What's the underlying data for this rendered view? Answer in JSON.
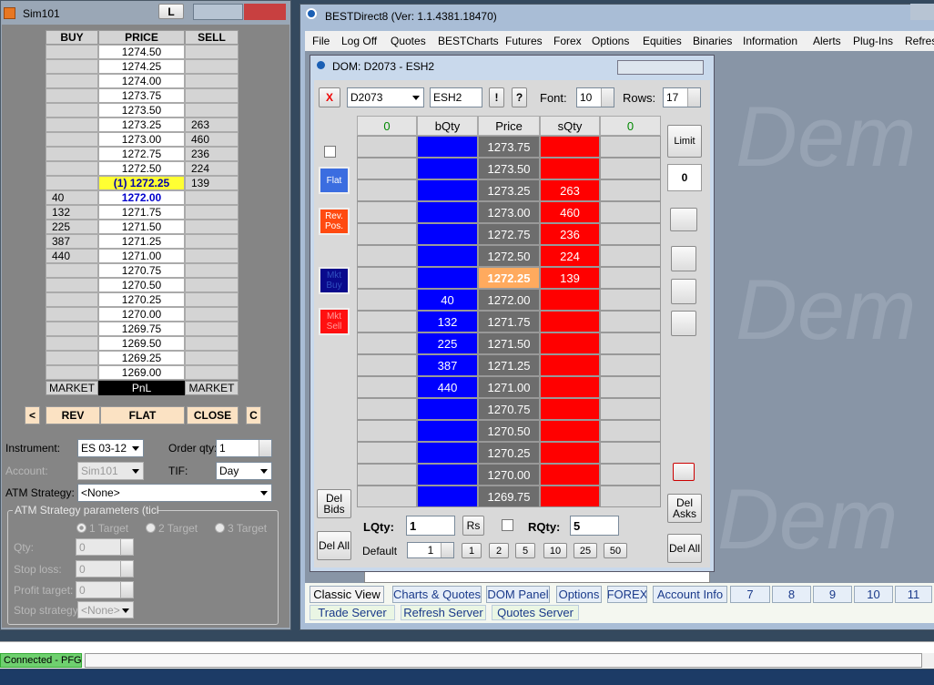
{
  "sim_window": {
    "title": "Sim101",
    "lock_button": "L",
    "ladder": {
      "headers": [
        "BUY",
        "PRICE",
        "SELL"
      ],
      "rows": [
        {
          "price": "1274.50"
        },
        {
          "price": "1274.25"
        },
        {
          "price": "1274.00"
        },
        {
          "price": "1273.75"
        },
        {
          "price": "1273.50"
        },
        {
          "price": "1273.25",
          "sell": "263"
        },
        {
          "price": "1273.00",
          "sell": "460"
        },
        {
          "price": "1272.75",
          "sell": "236"
        },
        {
          "price": "1272.50",
          "sell": "224"
        },
        {
          "price": "(1) 1272.25",
          "sell": "139"
        },
        {
          "buy": "40",
          "price": "1272.00"
        },
        {
          "buy": "132",
          "price": "1271.75"
        },
        {
          "buy": "225",
          "price": "1271.50"
        },
        {
          "buy": "387",
          "price": "1271.25"
        },
        {
          "buy": "440",
          "price": "1271.00"
        },
        {
          "price": "1270.75"
        },
        {
          "price": "1270.50"
        },
        {
          "price": "1270.25"
        },
        {
          "price": "1270.00"
        },
        {
          "price": "1269.75"
        },
        {
          "price": "1269.50"
        },
        {
          "price": "1269.25"
        },
        {
          "price": "1269.00"
        }
      ],
      "footer": [
        "MARKET",
        "PnL",
        "MARKET"
      ]
    },
    "buttons": [
      "<",
      "REV",
      "FLAT",
      "CLOSE",
      "C"
    ],
    "form": {
      "instrument_label": "Instrument:",
      "instrument": "ES 03-12",
      "order_qty_label": "Order qty:",
      "order_qty": "1",
      "account_label": "Account:",
      "account": "Sim101",
      "tif_label": "TIF:",
      "tif": "Day",
      "atm_label": "ATM Strategy:",
      "atm": "<None>",
      "group_title": "ATM Strategy parameters (ticks)",
      "targets": [
        "1 Target",
        "2 Target",
        "3 Target"
      ],
      "qty_label": "Qty:",
      "qty": "0",
      "stop_loss_label": "Stop loss:",
      "stop_loss": "0",
      "profit_target_label": "Profit target:",
      "profit_target": "0",
      "stop_strategy_label": "Stop strategy:",
      "stop_strategy": "<None>"
    }
  },
  "main_window": {
    "title": "BESTDirect8 (Ver: 1.1.4381.18470)",
    "menu": [
      "File",
      "Log Off",
      "Quotes",
      "BESTCharts",
      "Futures",
      "Forex",
      "Options",
      "Equities",
      "Binaries",
      "Information",
      "Alerts",
      "Plug-Ins",
      "Refres"
    ],
    "watermark": "Dem"
  },
  "dom": {
    "title": "DOM: D2073 - ESH2",
    "close": "X",
    "account": "D2073",
    "symbol": "ESH2",
    "bang": "!",
    "help": "?",
    "font_label": "Font:",
    "font": "10",
    "rows_label": "Rows:",
    "rows_value": "17",
    "headers": [
      "0",
      "bQty",
      "Price",
      "sQty",
      "0"
    ],
    "rows": [
      {
        "price": "1273.75"
      },
      {
        "price": "1273.50"
      },
      {
        "price": "1273.25",
        "ask": "263"
      },
      {
        "price": "1273.00",
        "ask": "460"
      },
      {
        "price": "1272.75",
        "ask": "236"
      },
      {
        "price": "1272.50",
        "ask": "224"
      },
      {
        "price": "1272.25",
        "ask": "139"
      },
      {
        "bid": "40",
        "price": "1272.00"
      },
      {
        "bid": "132",
        "price": "1271.75"
      },
      {
        "bid": "225",
        "price": "1271.50"
      },
      {
        "bid": "387",
        "price": "1271.25"
      },
      {
        "bid": "440",
        "price": "1271.00"
      },
      {
        "price": "1270.75"
      },
      {
        "price": "1270.50"
      },
      {
        "price": "1270.25"
      },
      {
        "price": "1270.00"
      },
      {
        "price": "1269.75"
      }
    ],
    "left_buttons": [
      "Flat",
      "Rev. Pos.",
      "Mkt Buy",
      "Mkt Sell",
      "Del Bids",
      "Del All"
    ],
    "right_buttons": [
      "Limit",
      "0",
      "Del Asks",
      "Del All"
    ],
    "lqty_label": "LQty:",
    "lqty": "1",
    "rs": "Rs",
    "rqty_label": "RQty:",
    "rqty": "5",
    "default_label": "Default",
    "default_value": "1",
    "quick_qty": [
      "1",
      "2",
      "5",
      "10",
      "25",
      "50"
    ]
  },
  "tabs": [
    "Classic View",
    "Charts & Quotes",
    "DOM Panel",
    "Options",
    "FOREX",
    "Account Info",
    "7",
    "8",
    "9",
    "10",
    "11"
  ],
  "server_tabs": [
    "Trade Server",
    "Refresh Server",
    "Quotes Server"
  ],
  "status": "Connected - PFG"
}
